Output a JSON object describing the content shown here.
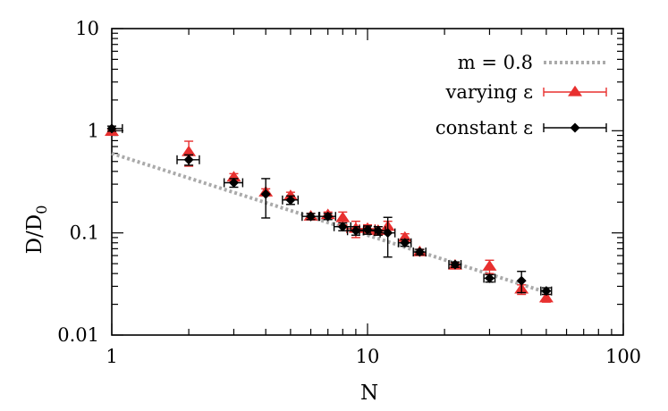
{
  "chart_data": {
    "type": "scatter",
    "xscale": "log",
    "yscale": "log",
    "xlim": [
      1,
      100
    ],
    "ylim": [
      0.01,
      10
    ],
    "xlabel": "N",
    "ylabel_main": "D/D",
    "ylabel_sub": "0",
    "x_ticks": [
      1,
      10,
      100
    ],
    "x_tick_labels": [
      "1",
      "10",
      "100"
    ],
    "y_ticks": [
      0.01,
      0.1,
      1,
      10
    ],
    "y_tick_labels": [
      "0.01",
      "0.1",
      "1",
      "10"
    ],
    "grid": false,
    "legend_position": "top-right",
    "series": [
      {
        "name": "m = 0.8",
        "kind": "dotted-line",
        "color": "#aaaaaa",
        "x": [
          1,
          50
        ],
        "y": [
          0.6,
          0.0262
        ]
      },
      {
        "name": "varying ε",
        "kind": "triangle",
        "color": "#e8302f",
        "x": [
          1,
          2,
          3,
          4,
          5,
          6,
          7,
          8,
          9,
          10,
          11,
          12,
          14,
          16,
          22,
          30,
          40,
          50
        ],
        "y": [
          0.98,
          0.62,
          0.35,
          0.25,
          0.23,
          0.145,
          0.15,
          0.14,
          0.11,
          0.11,
          0.105,
          0.115,
          0.09,
          0.065,
          0.048,
          0.047,
          0.028,
          0.023
        ],
        "y_err": [
          0.05,
          0.17,
          0.03,
          0.02,
          0.02,
          0.01,
          0.01,
          0.02,
          0.02,
          0.01,
          0.01,
          0.015,
          0.008,
          0.004,
          0.003,
          0.007,
          0.003,
          0.002
        ],
        "x_err": [
          0,
          0,
          0,
          0,
          0,
          0,
          0,
          0,
          0.7,
          0.7,
          0,
          0,
          0,
          0,
          0,
          0,
          0,
          0
        ]
      },
      {
        "name": "constant ε",
        "kind": "diamond",
        "color": "#000000",
        "x": [
          1,
          2,
          3,
          4,
          5,
          6,
          7,
          8,
          9,
          10,
          11,
          12,
          14,
          16,
          22,
          30,
          40,
          50
        ],
        "y": [
          1.05,
          0.52,
          0.31,
          0.24,
          0.21,
          0.145,
          0.145,
          0.115,
          0.105,
          0.107,
          0.105,
          0.1,
          0.08,
          0.065,
          0.049,
          0.036,
          0.034,
          0.027
        ],
        "y_err": [
          0.06,
          0.06,
          0.03,
          0.1,
          0.02,
          0.01,
          0.01,
          0.01,
          0.01,
          0.01,
          0.01,
          0.042,
          0.006,
          0.004,
          0.003,
          0.003,
          0.008,
          0.002
        ],
        "x_err": [
          0.1,
          0.2,
          0.25,
          0,
          0.35,
          0.45,
          0.5,
          0.6,
          0.65,
          0.7,
          0.75,
          0.8,
          0.8,
          0.9,
          1.2,
          1.5,
          0,
          2.4
        ]
      }
    ]
  }
}
